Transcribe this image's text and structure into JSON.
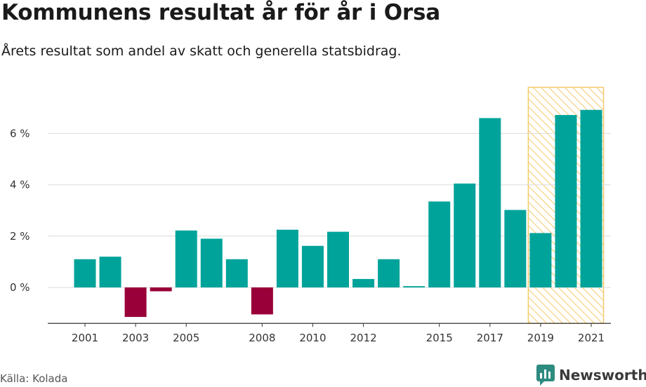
{
  "title": "Kommunens resultat år för år i Orsa",
  "subtitle": "Årets resultat som andel av skatt och generella statsbidrag.",
  "source": "Källa: Kolada",
  "brand": "Newsworthy",
  "colors": {
    "positive": "#00a39a",
    "negative": "#990039",
    "highlight": "#f5c96a",
    "grid": "#dcdcdc",
    "axis": "#333333",
    "logo": "#2e8b80"
  },
  "chart_data": {
    "type": "bar",
    "title": "Kommunens resultat år för år i Orsa",
    "subtitle": "Årets resultat som andel av skatt och generella statsbidrag.",
    "categories": [
      "2001",
      "2002",
      "2003",
      "2004",
      "2005",
      "2006",
      "2007",
      "2008",
      "2009",
      "2010",
      "2011",
      "2012",
      "2013",
      "2014",
      "2015",
      "2016",
      "2017",
      "2018",
      "2019",
      "2020",
      "2021"
    ],
    "values": [
      1.1,
      1.2,
      -1.15,
      -0.15,
      2.22,
      1.9,
      1.1,
      -1.05,
      2.25,
      1.62,
      2.17,
      0.33,
      1.1,
      0.05,
      3.35,
      4.05,
      6.6,
      3.02,
      2.12,
      6.72,
      6.92
    ],
    "ylim": [
      -1.4,
      7.8
    ],
    "yticks": [
      0,
      2,
      4,
      6
    ],
    "ytick_labels": [
      "0 %",
      "2 %",
      "4 %",
      "6 %"
    ],
    "xtick_labels": [
      "2001",
      "2003",
      "2005",
      "2008",
      "2010",
      "2012",
      "2015",
      "2017",
      "2019",
      "2021"
    ],
    "highlight_range": [
      "2019",
      "2021"
    ],
    "xlabel": "",
    "ylabel": "",
    "grid": true
  }
}
